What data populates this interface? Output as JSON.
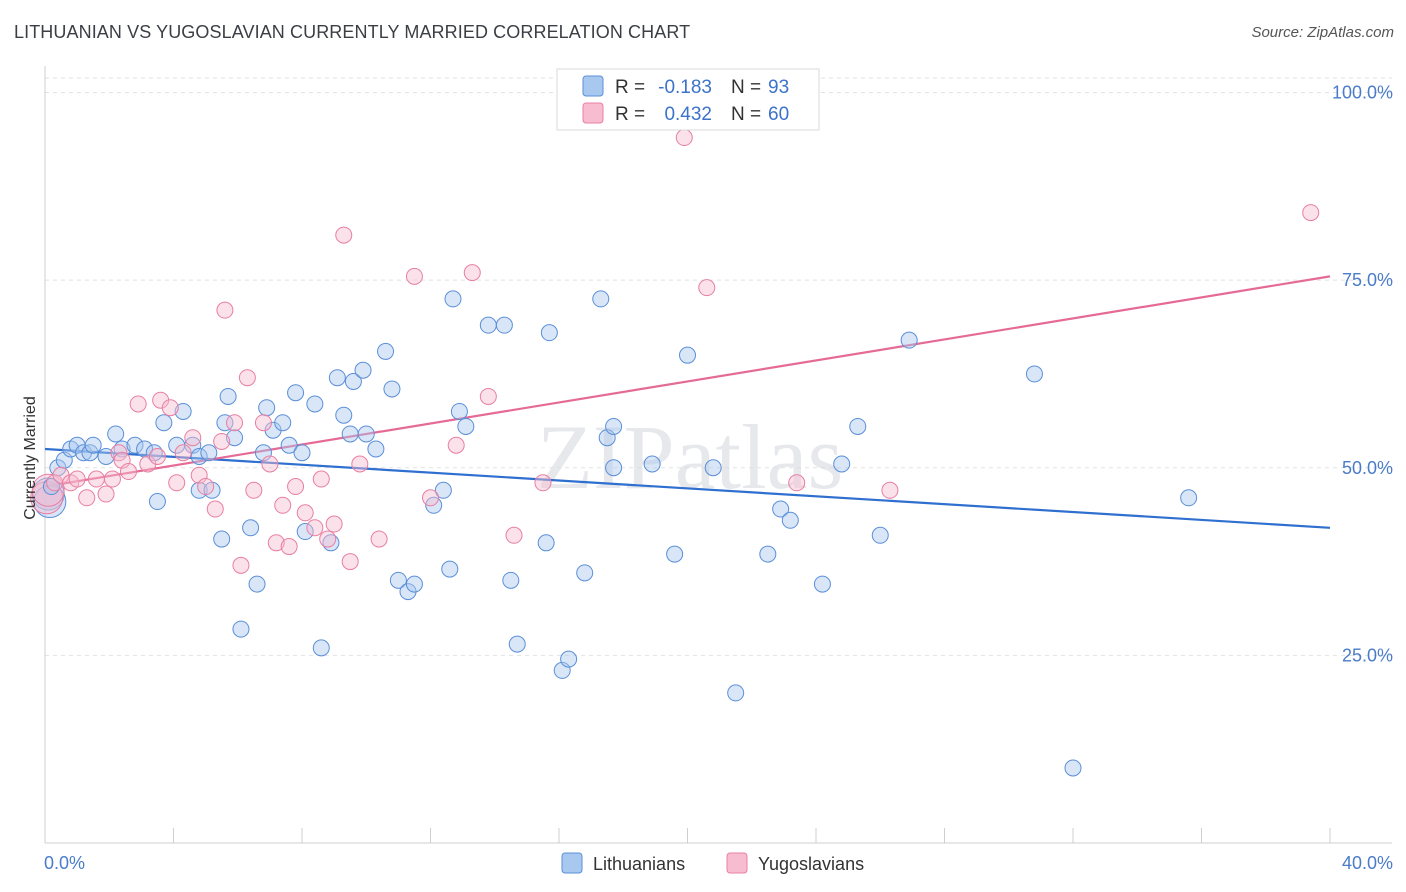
{
  "title": "LITHUANIAN VS YUGOSLAVIAN CURRENTLY MARRIED CORRELATION CHART",
  "source": "Source: ZipAtlas.com",
  "watermark": "ZIPatlas",
  "chart_data": {
    "type": "scatter",
    "xlabel": "",
    "ylabel": "Currently Married",
    "xlim": [
      0,
      40
    ],
    "ylim": [
      0,
      103
    ],
    "x_tick_labels": [
      "0.0%",
      "40.0%"
    ],
    "y_ticks": [
      25,
      50,
      75,
      100
    ],
    "y_tick_labels": [
      "25.0%",
      "50.0%",
      "75.0%",
      "100.0%"
    ],
    "legend": {
      "r_label": "R =",
      "n_label": "N =",
      "entries": [
        {
          "name": "Lithuanians",
          "r": "-0.183",
          "n": "93",
          "color": "#a9c8f0",
          "stroke": "#5b8fd8"
        },
        {
          "name": "Yugoslavians",
          "r": "0.432",
          "n": "60",
          "color": "#f7bcd0",
          "stroke": "#e87fa3"
        }
      ]
    },
    "series": [
      {
        "name": "Lithuanians",
        "color": "#a9c8f0",
        "stroke": "#5b8fd8",
        "trend": {
          "x0": 0,
          "y0": 52.5,
          "x1": 40,
          "y1": 42.0,
          "color": "#2f6fd0"
        },
        "points": [
          [
            0.2,
            47.5
          ],
          [
            0.4,
            50
          ],
          [
            0.6,
            51
          ],
          [
            0.8,
            52.5
          ],
          [
            1.0,
            53
          ],
          [
            1.2,
            52
          ],
          [
            1.4,
            52
          ],
          [
            1.5,
            53
          ],
          [
            1.9,
            51.5
          ],
          [
            2.2,
            54.5
          ],
          [
            2.4,
            52.5
          ],
          [
            2.8,
            53
          ],
          [
            3.1,
            52.5
          ],
          [
            3.4,
            52
          ],
          [
            3.5,
            45.5
          ],
          [
            3.7,
            56
          ],
          [
            4.1,
            53
          ],
          [
            4.3,
            57.5
          ],
          [
            4.6,
            53
          ],
          [
            4.8,
            51.5
          ],
          [
            4.8,
            47
          ],
          [
            5.1,
            52
          ],
          [
            5.2,
            47
          ],
          [
            5.5,
            40.5
          ],
          [
            5.6,
            56
          ],
          [
            5.7,
            59.5
          ],
          [
            5.9,
            54
          ],
          [
            6.1,
            28.5
          ],
          [
            6.4,
            42
          ],
          [
            6.6,
            34.5
          ],
          [
            6.8,
            52
          ],
          [
            6.9,
            58
          ],
          [
            7.1,
            55
          ],
          [
            7.4,
            56
          ],
          [
            7.6,
            53
          ],
          [
            7.8,
            60
          ],
          [
            8.0,
            52
          ],
          [
            8.1,
            41.5
          ],
          [
            8.4,
            58.5
          ],
          [
            8.6,
            26
          ],
          [
            8.9,
            40
          ],
          [
            9.1,
            62
          ],
          [
            9.3,
            57
          ],
          [
            9.5,
            54.5
          ],
          [
            9.6,
            61.5
          ],
          [
            9.9,
            63
          ],
          [
            10.0,
            54.5
          ],
          [
            10.3,
            52.5
          ],
          [
            10.6,
            65.5
          ],
          [
            10.8,
            60.5
          ],
          [
            11.0,
            35
          ],
          [
            11.3,
            33.5
          ],
          [
            11.5,
            34.5
          ],
          [
            12.1,
            45
          ],
          [
            12.4,
            47
          ],
          [
            12.6,
            36.5
          ],
          [
            12.7,
            72.5
          ],
          [
            12.9,
            57.5
          ],
          [
            13.1,
            55.5
          ],
          [
            13.8,
            69
          ],
          [
            14.3,
            69
          ],
          [
            14.5,
            35
          ],
          [
            14.7,
            26.5
          ],
          [
            15.6,
            40
          ],
          [
            15.7,
            68
          ],
          [
            16.1,
            23
          ],
          [
            16.3,
            24.5
          ],
          [
            16.8,
            36
          ],
          [
            17.3,
            72.5
          ],
          [
            17.5,
            54
          ],
          [
            17.7,
            55.5
          ],
          [
            17.7,
            50
          ],
          [
            18.9,
            50.5
          ],
          [
            19.6,
            38.5
          ],
          [
            20.0,
            65
          ],
          [
            20.8,
            50
          ],
          [
            21.5,
            20
          ],
          [
            22.5,
            38.5
          ],
          [
            22.9,
            44.5
          ],
          [
            23.2,
            43
          ],
          [
            24.2,
            34.5
          ],
          [
            24.8,
            50.5
          ],
          [
            25.3,
            55.5
          ],
          [
            26.0,
            41
          ],
          [
            26.9,
            67
          ],
          [
            30.8,
            62.5
          ],
          [
            32.0,
            10
          ],
          [
            35.6,
            46
          ]
        ],
        "large_points": [
          [
            0.1,
            46.5
          ],
          [
            0.15,
            45.5
          ]
        ]
      },
      {
        "name": "Yugoslavians",
        "color": "#f7bcd0",
        "stroke": "#e87fa3",
        "trend": {
          "x0": 0,
          "y0": 47.5,
          "x1": 40,
          "y1": 75.5,
          "color": "#e56a96"
        },
        "points": [
          [
            0.3,
            48
          ],
          [
            0.5,
            49
          ],
          [
            0.8,
            48
          ],
          [
            1.0,
            48.5
          ],
          [
            1.3,
            46
          ],
          [
            1.6,
            48.5
          ],
          [
            1.9,
            46.5
          ],
          [
            2.1,
            48.5
          ],
          [
            2.3,
            52
          ],
          [
            2.4,
            51
          ],
          [
            2.6,
            49.5
          ],
          [
            2.9,
            58.5
          ],
          [
            3.2,
            50.5
          ],
          [
            3.5,
            51.5
          ],
          [
            3.6,
            59
          ],
          [
            3.9,
            58
          ],
          [
            4.1,
            48
          ],
          [
            4.3,
            52
          ],
          [
            4.6,
            54
          ],
          [
            4.8,
            49
          ],
          [
            5.0,
            47.5
          ],
          [
            5.3,
            44.5
          ],
          [
            5.5,
            53.5
          ],
          [
            5.6,
            71
          ],
          [
            5.9,
            56
          ],
          [
            6.1,
            37
          ],
          [
            6.3,
            62
          ],
          [
            6.5,
            47
          ],
          [
            6.8,
            56
          ],
          [
            7.0,
            50.5
          ],
          [
            7.2,
            40
          ],
          [
            7.4,
            45
          ],
          [
            7.6,
            39.5
          ],
          [
            7.8,
            47.5
          ],
          [
            8.1,
            44
          ],
          [
            8.4,
            42
          ],
          [
            8.6,
            48.5
          ],
          [
            8.8,
            40.5
          ],
          [
            9.0,
            42.5
          ],
          [
            9.3,
            81
          ],
          [
            9.5,
            37.5
          ],
          [
            9.8,
            50.5
          ],
          [
            10.4,
            40.5
          ],
          [
            11.5,
            75.5
          ],
          [
            12.0,
            46
          ],
          [
            12.8,
            53
          ],
          [
            13.3,
            76
          ],
          [
            13.8,
            59.5
          ],
          [
            14.6,
            41
          ],
          [
            15.5,
            48
          ],
          [
            19.9,
            94
          ],
          [
            20.6,
            74
          ],
          [
            23.4,
            48
          ],
          [
            26.3,
            47
          ],
          [
            39.4,
            84
          ]
        ],
        "large_points": [
          [
            0.05,
            46
          ],
          [
            0.1,
            47
          ]
        ]
      }
    ]
  }
}
